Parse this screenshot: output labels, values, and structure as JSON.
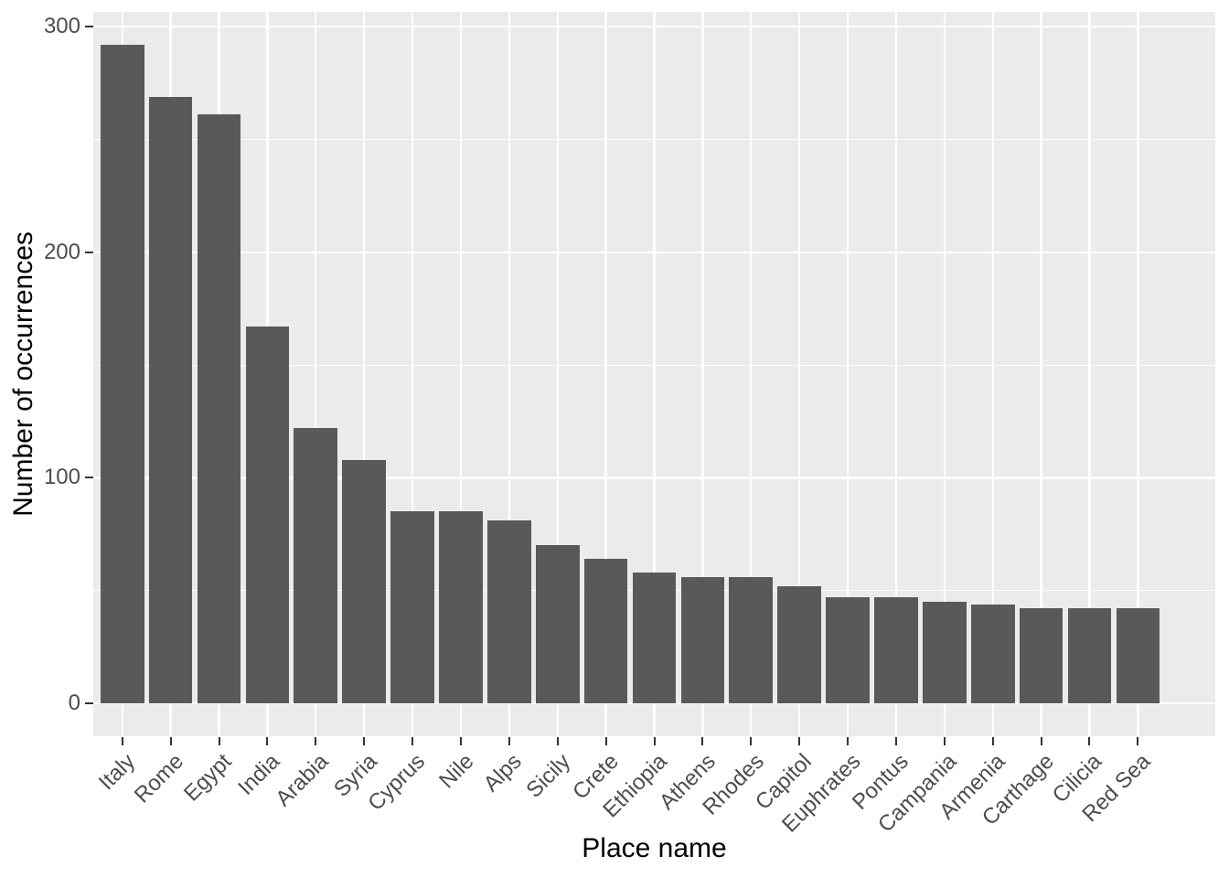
{
  "chart_data": {
    "type": "bar",
    "title": "",
    "xlabel": "Place name",
    "ylabel": "Number of occurrences",
    "categories": [
      "Italy",
      "Rome",
      "Egypt",
      "India",
      "Arabia",
      "Syria",
      "Cyprus",
      "Nile",
      "Alps",
      "Sicily",
      "Crete",
      "Ethiopia",
      "Athens",
      "Rhodes",
      "Capitol",
      "Euphrates",
      "Pontus",
      "Campania",
      "Armenia",
      "Carthage",
      "Cilicia",
      "Red Sea"
    ],
    "values": [
      292,
      269,
      261,
      167,
      122,
      108,
      85,
      85,
      81,
      70,
      64,
      58,
      56,
      56,
      52,
      47,
      47,
      45,
      44,
      42,
      42,
      42
    ],
    "y_major_ticks": [
      0,
      100,
      200,
      300
    ],
    "y_minor_ticks": [
      50,
      150,
      250
    ],
    "ylim": [
      0,
      300
    ],
    "y_expansion_mult": 0.05,
    "bar_width_fraction": 0.9,
    "grid": "major and minor horizontal white lines, major vertical white line at each category center",
    "legend": "none",
    "orientation": "vertical"
  },
  "style": {
    "figure_bg": "#FFFFFF",
    "panel_bg": "#EBEBEB",
    "grid_color": "#FFFFFF",
    "bar_fill": "#595959",
    "axis_text_color": "#4D4D4D",
    "axis_title_color": "#000000",
    "tick_mark_color": "#333333"
  }
}
